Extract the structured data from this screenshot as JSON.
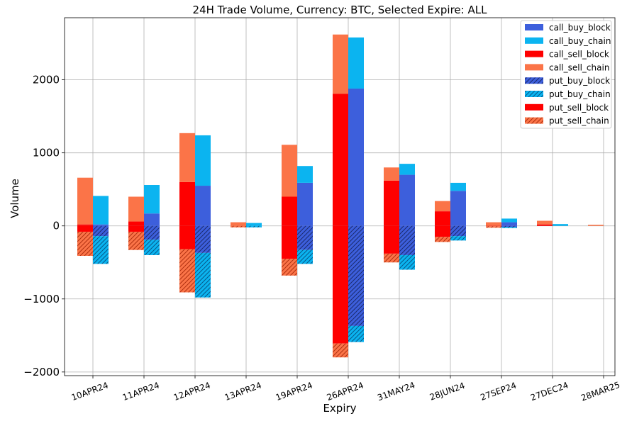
{
  "chart_data": {
    "type": "bar",
    "title": "24H Trade Volume, Currency: BTC, Selected Expire: ALL",
    "xlabel": "Expiry",
    "ylabel": "Volume",
    "ylim": [
      -2050,
      2850
    ],
    "yticks": [
      -2000,
      -1000,
      0,
      1000,
      2000
    ],
    "ytick_labels": [
      "−2000",
      "−1000",
      "0",
      "1000",
      "2000"
    ],
    "grid": true,
    "legend_position": "top-right",
    "categories": [
      "10APR24",
      "11APR24",
      "12APR24",
      "13APR24",
      "19APR24",
      "26APR24",
      "31MAY24",
      "28JUN24",
      "27SEP24",
      "27DEC24",
      "28MAR25"
    ],
    "series": [
      {
        "name": "call_buy_block",
        "side": "call",
        "group": "buy",
        "color": "#3d5fdc",
        "hatch": false,
        "values": [
          20,
          170,
          550,
          0,
          590,
          1880,
          700,
          480,
          50,
          0,
          0
        ]
      },
      {
        "name": "call_buy_chain",
        "side": "call",
        "group": "buy",
        "color": "#0bb4f0",
        "hatch": false,
        "values": [
          390,
          390,
          690,
          40,
          230,
          700,
          150,
          110,
          50,
          25,
          0
        ]
      },
      {
        "name": "call_sell_block",
        "side": "call",
        "group": "sell",
        "color": "#fe0000",
        "hatch": false,
        "values": [
          20,
          60,
          600,
          0,
          400,
          1810,
          620,
          200,
          0,
          20,
          0
        ]
      },
      {
        "name": "call_sell_chain",
        "side": "call",
        "group": "sell",
        "color": "#fb7448",
        "hatch": false,
        "values": [
          640,
          340,
          670,
          50,
          710,
          810,
          180,
          140,
          50,
          50,
          15
        ]
      },
      {
        "name": "put_buy_block",
        "side": "put",
        "group": "buy",
        "color": "#3d5fdc",
        "hatch": true,
        "values": [
          -140,
          -190,
          -370,
          0,
          -330,
          -1370,
          -400,
          -140,
          -15,
          0,
          0
        ]
      },
      {
        "name": "put_buy_chain",
        "side": "put",
        "group": "buy",
        "color": "#0bb4f0",
        "hatch": true,
        "values": [
          -380,
          -210,
          -610,
          -20,
          -190,
          -220,
          -200,
          -60,
          -15,
          0,
          0
        ]
      },
      {
        "name": "put_sell_block",
        "side": "put",
        "group": "sell",
        "color": "#fe0000",
        "hatch": false,
        "values": [
          -80,
          -80,
          -320,
          0,
          -450,
          -1610,
          -380,
          -150,
          -5,
          0,
          0
        ]
      },
      {
        "name": "put_sell_chain",
        "side": "put",
        "group": "sell",
        "color": "#fb7448",
        "hatch": true,
        "values": [
          -330,
          -250,
          -590,
          -20,
          -230,
          -190,
          -120,
          -70,
          -20,
          0,
          0
        ]
      }
    ]
  }
}
